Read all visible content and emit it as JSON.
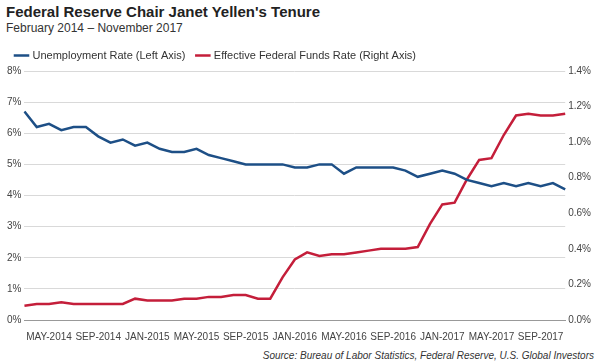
{
  "chart_data": {
    "type": "line",
    "title": "Federal Reserve Chair Janet Yellen's Tenure",
    "subtitle": "February 2014 – November 2017",
    "source": "Source: Bureau of Labor Statistics, Federal Reserve, U.S. Global Investors",
    "categories": [
      null,
      null,
      "MAY-2014",
      null,
      null,
      null,
      "SEP-2014",
      null,
      null,
      null,
      "JAN-2015",
      null,
      null,
      null,
      "MAY-2015",
      null,
      null,
      null,
      "SEP-2015",
      null,
      null,
      null,
      "JAN-2016",
      null,
      null,
      null,
      "MAY-2016",
      null,
      null,
      null,
      "SEP-2016",
      null,
      null,
      null,
      "JAN-2017",
      null,
      null,
      null,
      "MAY-2017",
      null,
      null,
      null,
      "SEP-2017",
      null,
      null
    ],
    "series": [
      {
        "name": "Unemployment Rate (Left Axis)",
        "color": "#1d4f86",
        "axis": "y",
        "values": [
          6.7,
          6.2,
          6.3,
          6.1,
          6.2,
          6.2,
          5.9,
          5.7,
          5.8,
          5.6,
          5.7,
          5.5,
          5.4,
          5.4,
          5.5,
          5.3,
          5.2,
          5.1,
          5.0,
          5.0,
          5.0,
          5.0,
          4.9,
          4.9,
          5.0,
          5.0,
          4.7,
          4.9,
          4.9,
          4.9,
          4.9,
          4.8,
          4.6,
          4.7,
          4.8,
          4.7,
          4.5,
          4.4,
          4.3,
          4.4,
          4.3,
          4.4,
          4.3,
          4.4,
          4.2
        ]
      },
      {
        "name": "Effective Federal Funds Rate (Right Axis)",
        "color": "#c41e3a",
        "axis": "y2",
        "values": [
          0.08,
          0.09,
          0.09,
          0.1,
          0.09,
          0.09,
          0.09,
          0.09,
          0.09,
          0.12,
          0.11,
          0.11,
          0.11,
          0.12,
          0.12,
          0.13,
          0.13,
          0.14,
          0.14,
          0.12,
          0.12,
          0.24,
          0.34,
          0.38,
          0.36,
          0.37,
          0.37,
          0.38,
          0.39,
          0.4,
          0.4,
          0.4,
          0.41,
          0.54,
          0.65,
          0.66,
          0.79,
          0.9,
          0.91,
          1.04,
          1.15,
          1.16,
          1.15,
          1.15,
          1.16
        ]
      }
    ],
    "ylim": [
      0,
      8
    ],
    "yticks": [
      {
        "value": 0,
        "label": "0%"
      },
      {
        "value": 1,
        "label": "1%"
      },
      {
        "value": 2,
        "label": "2%"
      },
      {
        "value": 3,
        "label": "3%"
      },
      {
        "value": 4,
        "label": "4%"
      },
      {
        "value": 5,
        "label": "5%"
      },
      {
        "value": 6,
        "label": "6%"
      },
      {
        "value": 7,
        "label": "7%"
      },
      {
        "value": 8,
        "label": "8%"
      }
    ],
    "y2lim": [
      0,
      1.4
    ],
    "y2ticks": [
      {
        "value": 0,
        "label": "0.0%"
      },
      {
        "value": 0.2,
        "label": "0.2%"
      },
      {
        "value": 0.4,
        "label": "0.4%"
      },
      {
        "value": 0.6,
        "label": "0.6%"
      },
      {
        "value": 0.8,
        "label": "0.8%"
      },
      {
        "value": 1.0,
        "label": "1.0%"
      },
      {
        "value": 1.2,
        "label": "1.2%"
      },
      {
        "value": 1.4,
        "label": "1.4%"
      }
    ],
    "grid": true,
    "legend": "top-left"
  }
}
